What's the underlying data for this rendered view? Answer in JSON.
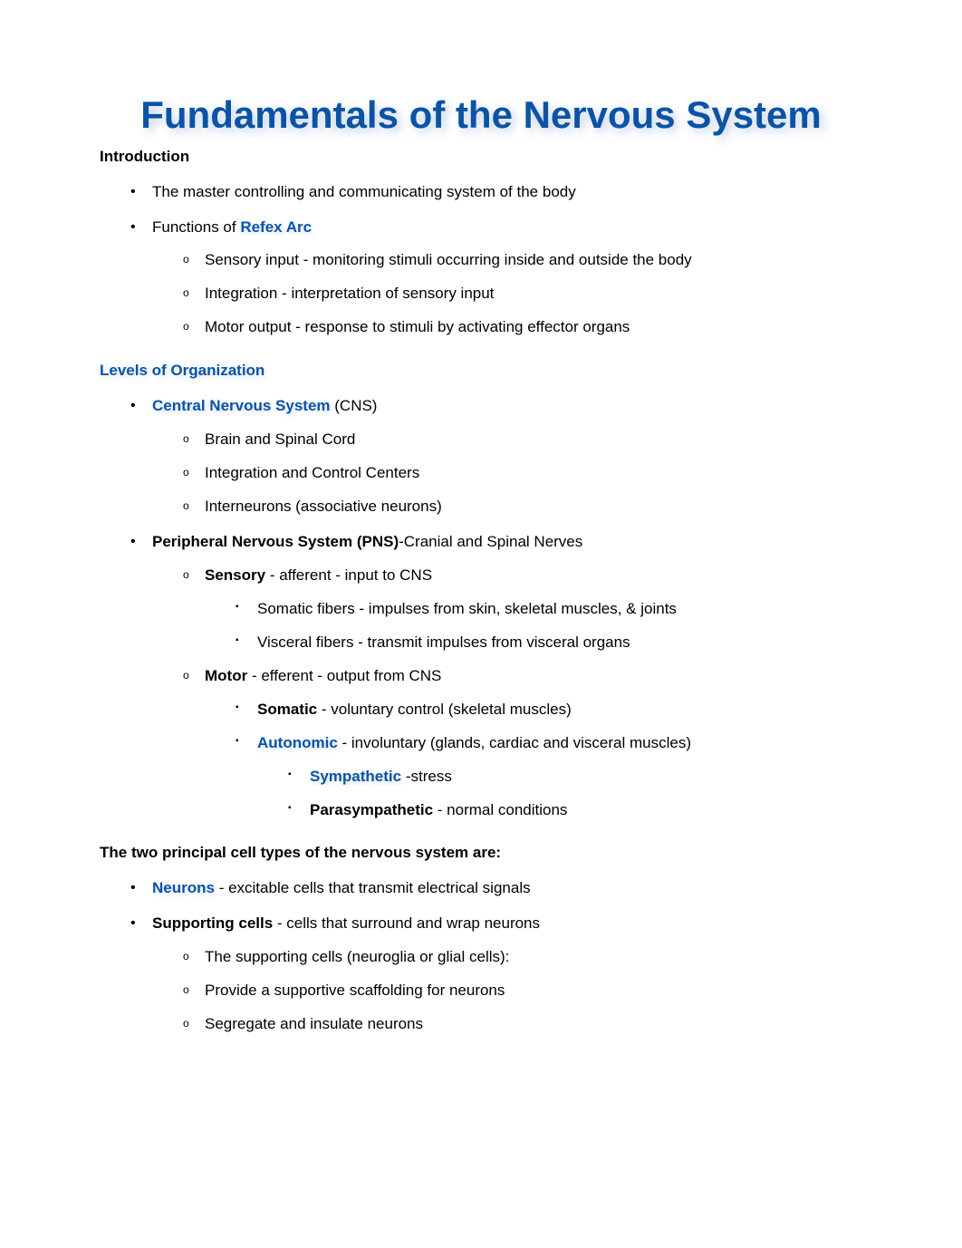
{
  "colors": {
    "link_blue": "#0a53a5",
    "text_black": "#000000",
    "background": "#ffffff",
    "shadow": "rgba(10,70,150,0.25)"
  },
  "typography": {
    "title_fontsize": 42,
    "body_fontsize": 17,
    "title_font": "Verdana",
    "body_font": "Segoe UI"
  },
  "title": "Fundamentals of the Nervous System",
  "intro": {
    "heading": "Introduction",
    "items": [
      {
        "text": "The master controlling and communicating system of the body"
      },
      {
        "prefix": "Functions of ",
        "link": "Refex Arc",
        "sub": [
          "Sensory input - monitoring stimuli occurring inside and outside the body",
          "Integration - interpretation of sensory input",
          "Motor output - response to stimuli by activating effector organs"
        ]
      }
    ]
  },
  "levels": {
    "heading": "Levels of Organization",
    "cns": {
      "link": "Central Nervous System",
      "suffix": " (CNS)",
      "sub": [
        "Brain and Spinal Cord",
        "Integration and Control Centers",
        "Interneurons (associative neurons)"
      ]
    },
    "pns": {
      "bold": "Peripheral Nervous System (PNS)",
      "suffix": "-Cranial and Spinal Nerves",
      "sensory": {
        "bold": "Sensory",
        "rest": " - afferent - input to CNS",
        "sub": [
          "Somatic fibers - impulses from skin, skeletal muscles, & joints",
          "Visceral fibers - transmit impulses from visceral organs"
        ]
      },
      "motor": {
        "bold": "Motor",
        "rest": " - efferent - output from CNS",
        "somatic": {
          "bold": "Somatic",
          "rest": " - voluntary control (skeletal muscles)"
        },
        "autonomic": {
          "link": "Autonomic",
          "rest": " - involuntary (glands, cardiac and visceral muscles)",
          "sympathetic": {
            "link": "Sympathetic",
            "rest": " -stress"
          },
          "parasympathetic": {
            "bold": "Parasympathetic",
            "rest": " - normal conditions"
          }
        }
      }
    }
  },
  "cells": {
    "heading": "The two principal cell types of the nervous system are:",
    "neurons": {
      "link": "Neurons",
      "rest": " - excitable cells that transmit electrical signals"
    },
    "supporting": {
      "bold": "Supporting cells",
      "rest": " - cells that surround and wrap neurons",
      "sub": [
        "The supporting cells (neuroglia or glial cells):",
        "Provide a supportive scaffolding for neurons",
        "Segregate and insulate neurons"
      ]
    }
  }
}
